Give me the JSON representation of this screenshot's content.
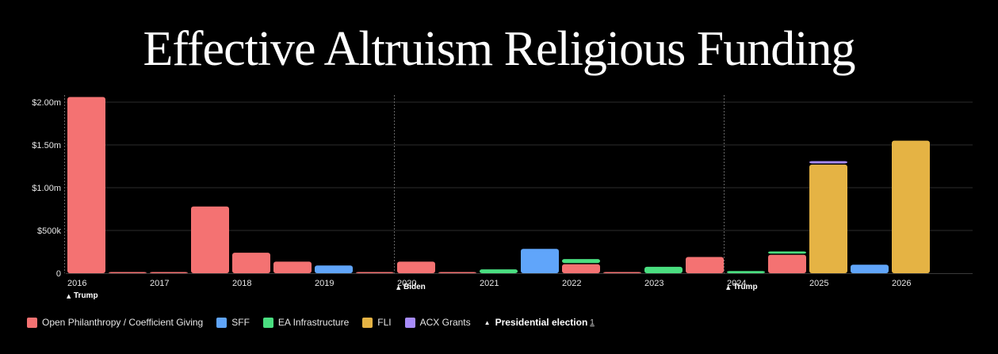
{
  "title": "Effective Altruism Religious Funding",
  "colors": {
    "background": "#000000",
    "Open Philanthropy / Coefficient Giving": "#f47272",
    "SFF": "#60a5fa",
    "EA Infrastructure": "#4ade80",
    "FLI": "#e5b344",
    "ACX Grants": "#a78bfa"
  },
  "legend": {
    "series": [
      {
        "name": "Open Philanthropy / Coefficient Giving",
        "color": "#f47272"
      },
      {
        "name": "SFF",
        "color": "#60a5fa"
      },
      {
        "name": "EA Infrastructure",
        "color": "#4ade80"
      },
      {
        "name": "FLI",
        "color": "#e5b344"
      },
      {
        "name": "ACX Grants",
        "color": "#a78bfa"
      }
    ],
    "election_label": "Presidential election",
    "election_note": "1",
    "election_icon": "triangle-up-icon"
  },
  "chart_data": {
    "type": "bar",
    "stacked": true,
    "title": "Effective Altruism Religious Funding",
    "xlabel": "",
    "ylabel": "",
    "ylim": [
      0,
      2000000
    ],
    "y_ticks": [
      {
        "value": 0,
        "label": "0"
      },
      {
        "value": 500000,
        "label": "$500k"
      },
      {
        "value": 1000000,
        "label": "$1.00m"
      },
      {
        "value": 1500000,
        "label": "$1.50m"
      },
      {
        "value": 2000000,
        "label": "$2.00m"
      }
    ],
    "x_ticks": [
      {
        "t": 2016.0,
        "label": "2016"
      },
      {
        "t": 2017.0,
        "label": "2017"
      },
      {
        "t": 2018.0,
        "label": "2018"
      },
      {
        "t": 2019.0,
        "label": "2019"
      },
      {
        "t": 2020.0,
        "label": "2020"
      },
      {
        "t": 2021.0,
        "label": "2021"
      },
      {
        "t": 2022.0,
        "label": "2022"
      },
      {
        "t": 2023.0,
        "label": "2023"
      },
      {
        "t": 2024.0,
        "label": "2024"
      },
      {
        "t": 2025.0,
        "label": "2025"
      },
      {
        "t": 2026.0,
        "label": "2026"
      }
    ],
    "x_range": [
      2016.0,
      2027.0
    ],
    "period_length": 0.5,
    "periods": [
      "2016 H1",
      "2016 H2",
      "2017 H1",
      "2017 H2",
      "2018 H1",
      "2018 H2",
      "2019 H1",
      "2019 H2",
      "2020 H1",
      "2020 H2",
      "2021 H1",
      "2021 H2",
      "2022 H1",
      "2022 H2",
      "2023 H1",
      "2023 H2",
      "2024 H1",
      "2024 H2",
      "2025 H1",
      "2025 H2",
      "2026 H1"
    ],
    "period_start": [
      2016.0,
      2016.5,
      2017.0,
      2017.5,
      2018.0,
      2018.5,
      2019.0,
      2019.5,
      2020.0,
      2020.5,
      2021.0,
      2021.5,
      2022.0,
      2022.5,
      2023.0,
      2023.5,
      2024.0,
      2024.5,
      2025.0,
      2025.5,
      2026.0
    ],
    "series": [
      {
        "name": "Open Philanthropy / Coefficient Giving",
        "color": "#f47272",
        "values": [
          2060000,
          8000,
          8000,
          780000,
          240000,
          135000,
          0,
          8000,
          135000,
          8000,
          0,
          0,
          105000,
          8000,
          0,
          190000,
          0,
          215000,
          0,
          0,
          0
        ]
      },
      {
        "name": "EA Infrastructure",
        "color": "#4ade80",
        "values": [
          0,
          0,
          0,
          0,
          0,
          0,
          0,
          0,
          0,
          0,
          45000,
          0,
          60000,
          0,
          75000,
          0,
          25000,
          40000,
          0,
          0,
          0
        ]
      },
      {
        "name": "SFF",
        "color": "#60a5fa",
        "values": [
          0,
          0,
          0,
          0,
          0,
          0,
          90000,
          0,
          0,
          0,
          0,
          285000,
          0,
          0,
          0,
          0,
          0,
          0,
          0,
          100000,
          0
        ]
      },
      {
        "name": "FLI",
        "color": "#e5b344",
        "values": [
          0,
          0,
          0,
          0,
          0,
          0,
          0,
          0,
          0,
          0,
          0,
          0,
          0,
          0,
          0,
          0,
          0,
          0,
          1270000,
          0,
          1550000
        ]
      },
      {
        "name": "ACX Grants",
        "color": "#a78bfa",
        "values": [
          0,
          0,
          0,
          0,
          0,
          0,
          0,
          0,
          0,
          0,
          0,
          0,
          0,
          0,
          0,
          0,
          0,
          0,
          40000,
          0,
          0
        ]
      }
    ],
    "stack_order_bottom_to_top": [
      "Open Philanthropy / Coefficient Giving",
      "EA Infrastructure",
      "SFF",
      "FLI",
      "ACX Grants"
    ],
    "fli_period_stack_bottom_to_top": [
      "FLI",
      "SFF",
      "EA Infrastructure",
      "ACX Grants"
    ],
    "elections": [
      {
        "t": 2016.0,
        "label": "Trump"
      },
      {
        "t": 2020.0,
        "label": "Biden"
      },
      {
        "t": 2024.0,
        "label": "Trump"
      }
    ],
    "grid": true,
    "legend_position": "bottom-left"
  }
}
